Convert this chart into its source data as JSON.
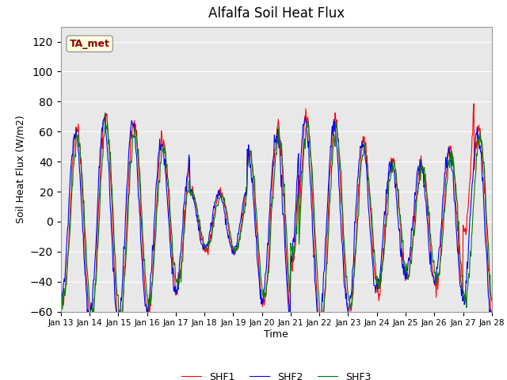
{
  "title": "Alfalfa Soil Heat Flux",
  "ylabel": "Soil Heat Flux (W/m2)",
  "xlabel": "Time",
  "ylim": [
    -60,
    130
  ],
  "yticks": [
    -60,
    -40,
    -20,
    0,
    20,
    40,
    60,
    80,
    100,
    120
  ],
  "x_labels": [
    "Jan 13",
    "Jan 14",
    "Jan 15",
    "Jan 16",
    "Jan 17",
    "Jan 18",
    "Jan 19",
    "Jan 20",
    "Jan 21",
    "Jan 22",
    "Jan 23",
    "Jan 24",
    "Jan 25",
    "Jan 26",
    "Jan 27",
    "Jan 28"
  ],
  "series_colors": [
    "red",
    "blue",
    "green"
  ],
  "series_names": [
    "SHF1",
    "SHF2",
    "SHF3"
  ],
  "ta_met_label": "TA_met",
  "plot_bg": "#e8e8e8"
}
